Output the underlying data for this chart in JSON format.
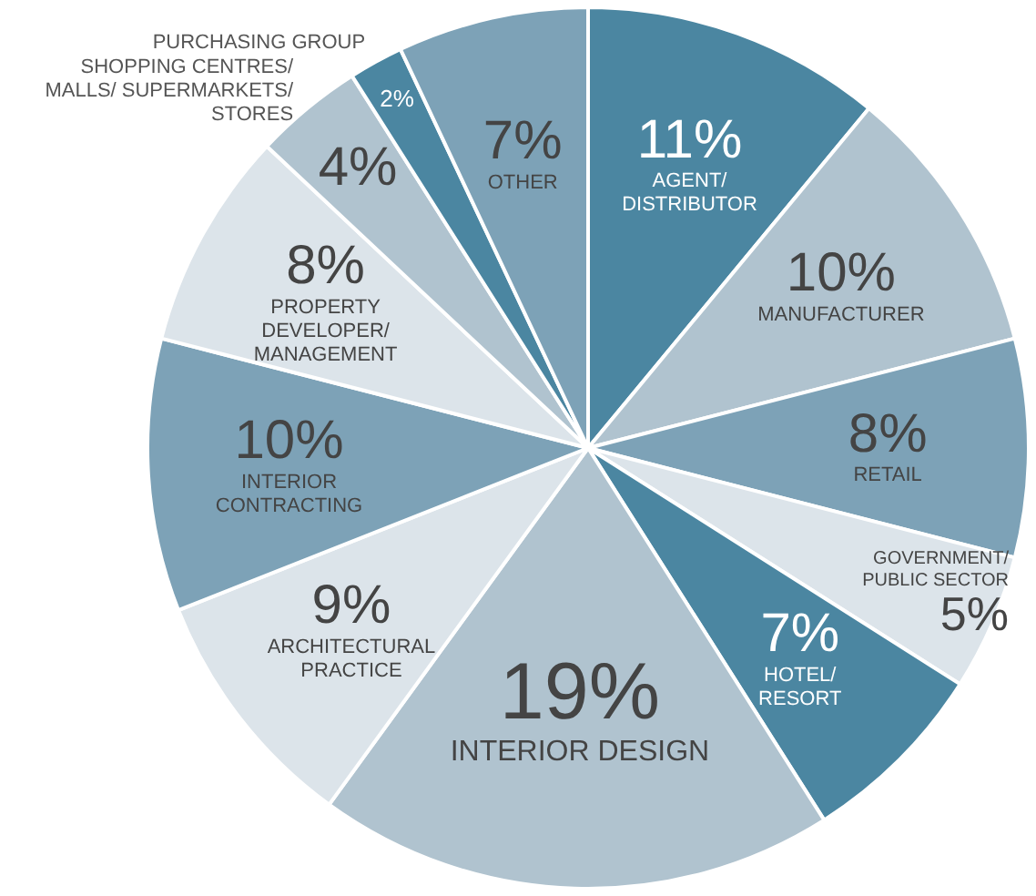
{
  "chart_data": {
    "type": "pie",
    "categories": [
      "AGENT/\nDISTRIBUTOR",
      "MANUFACTURER",
      "RETAIL",
      "GOVERNMENT/\nPUBLIC SECTOR",
      "HOTEL/\nRESORT",
      "INTERIOR DESIGN",
      "ARCHITECTURAL\nPRACTICE",
      "INTERIOR\nCONTRACTING",
      "PROPERTY\nDEVELOPER/\nMANAGEMENT",
      "SHOPPING CENTRES/\nMALLS/ SUPERMARKETS/\nSTORES",
      "PURCHASING GROUP",
      "OTHER"
    ],
    "values": [
      11,
      10,
      8,
      5,
      7,
      19,
      9,
      10,
      8,
      4,
      2,
      7
    ],
    "value_labels": [
      "11%",
      "10%",
      "8%",
      "5%",
      "7%",
      "19%",
      "9%",
      "10%",
      "8%",
      "4%",
      "2%",
      "7%"
    ],
    "colors": [
      "#4b86a1",
      "#b0c3cf",
      "#7da2b7",
      "#dce4ea",
      "#4b86a1",
      "#b0c3cf",
      "#dce4ea",
      "#7da2b7",
      "#dce4ea",
      "#b0c3cf",
      "#4b86a1",
      "#7da2b7"
    ],
    "legend": false
  }
}
